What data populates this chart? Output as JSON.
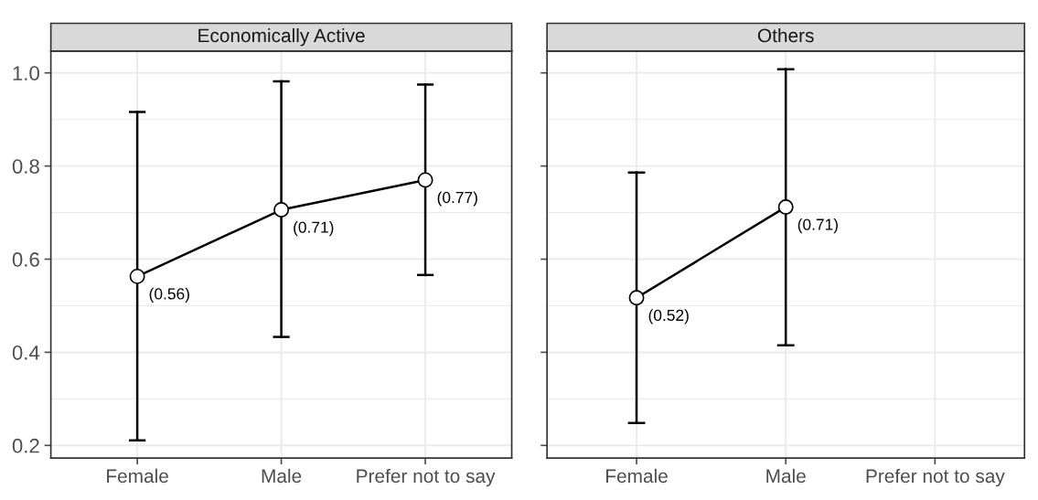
{
  "chart_data": [
    {
      "type": "line",
      "title": "Economically Active",
      "categories": [
        "Female",
        "Male",
        "Prefer not to say"
      ],
      "series": [
        {
          "color": "#000000",
          "values": [
            0.563,
            0.706,
            0.77
          ],
          "errors": [
            [
              0.211,
              0.916
            ],
            [
              0.433,
              0.982
            ],
            [
              0.566,
              0.975
            ]
          ],
          "value_labels": [
            "(0.56)",
            "(0.71)",
            "(0.77)"
          ]
        }
      ],
      "ylim": [
        0.173,
        1.047
      ],
      "yticks": [
        {
          "value": 0.2,
          "label": "0.2"
        },
        {
          "value": 0.4,
          "label": "0.4"
        },
        {
          "value": 0.6,
          "label": "0.6"
        },
        {
          "value": 0.8,
          "label": "0.8"
        },
        {
          "value": 1.0,
          "label": "1.0"
        }
      ],
      "grid": true,
      "marker": "circle",
      "line_style": "solid"
    },
    {
      "type": "line",
      "title": "Others",
      "categories": [
        "Female",
        "Male",
        "Prefer not to say"
      ],
      "series": [
        {
          "color": "#000000",
          "values": [
            0.517,
            0.712,
            null
          ],
          "errors": [
            [
              0.248,
              0.786
            ],
            [
              0.415,
              1.008
            ],
            null
          ],
          "value_labels": [
            "(0.52)",
            "(0.71)",
            null
          ]
        }
      ],
      "ylim": [
        0.173,
        1.047
      ],
      "yticks": [
        {
          "value": 0.2,
          "label": null
        },
        {
          "value": 0.4,
          "label": null
        },
        {
          "value": 0.6,
          "label": null
        },
        {
          "value": 0.8,
          "label": null
        },
        {
          "value": 1.0,
          "label": null
        }
      ],
      "grid": true,
      "marker": "circle",
      "line_style": "solid",
      "tick_labels": "x"
    }
  ]
}
